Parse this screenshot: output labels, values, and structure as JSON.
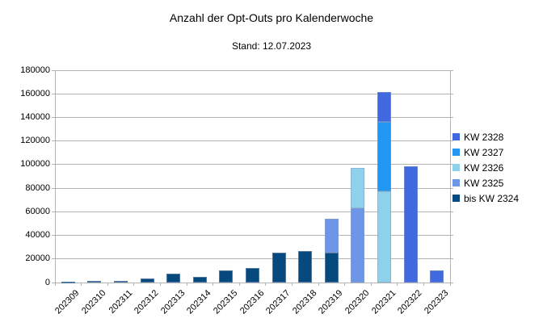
{
  "chart_data": {
    "type": "bar",
    "stacked": true,
    "title": "Anzahl der Opt-Outs pro Kalenderwoche",
    "subtitle": "Stand: 12.07.2023",
    "categories": [
      "202309",
      "202310",
      "202311",
      "202312",
      "202313",
      "202314",
      "202315",
      "202316",
      "202317",
      "202318",
      "202319",
      "202320",
      "202321",
      "202322",
      "202323"
    ],
    "series": [
      {
        "name": "bis KW 2324",
        "color": "#05497F",
        "values": [
          400,
          1100,
          1700,
          3300,
          7500,
          4500,
          10000,
          12000,
          25500,
          27000,
          25500,
          0,
          0,
          0,
          0
        ]
      },
      {
        "name": "KW 2325",
        "color": "#6E96E8",
        "values": [
          0,
          0,
          0,
          0,
          0,
          0,
          0,
          0,
          0,
          0,
          28500,
          62700,
          0,
          0,
          0
        ]
      },
      {
        "name": "KW 2326",
        "color": "#8ED1EA",
        "values": [
          0,
          0,
          0,
          0,
          0,
          0,
          0,
          0,
          0,
          0,
          0,
          34800,
          77600,
          0,
          0
        ]
      },
      {
        "name": "KW 2327",
        "color": "#2196F3",
        "values": [
          0,
          0,
          0,
          0,
          0,
          0,
          0,
          0,
          0,
          0,
          0,
          0,
          58300,
          0,
          0
        ]
      },
      {
        "name": "KW 2328",
        "color": "#4169DF",
        "values": [
          0,
          0,
          0,
          0,
          0,
          0,
          0,
          0,
          0,
          0,
          0,
          0,
          25500,
          98500,
          10300
        ]
      }
    ],
    "legend": {
      "position": "right",
      "entries": [
        {
          "label": "KW 2328",
          "color": "#4169DF"
        },
        {
          "label": "KW 2327",
          "color": "#2196F3"
        },
        {
          "label": "KW 2326",
          "color": "#8ED1EA"
        },
        {
          "label": "KW 2325",
          "color": "#6E96E8"
        },
        {
          "label": "bis KW 2324",
          "color": "#05497F"
        }
      ]
    },
    "grid": true,
    "ylim": [
      0,
      180000
    ],
    "ytick_step": 20000,
    "ytick_labels": [
      "0",
      "20000",
      "40000",
      "60000",
      "80000",
      "100000",
      "120000",
      "140000",
      "160000",
      "180000"
    ],
    "xlabel": "",
    "ylabel": ""
  },
  "colors": {
    "grid": "#b3b3b3",
    "background": "#ffffff",
    "text": "#000000"
  }
}
